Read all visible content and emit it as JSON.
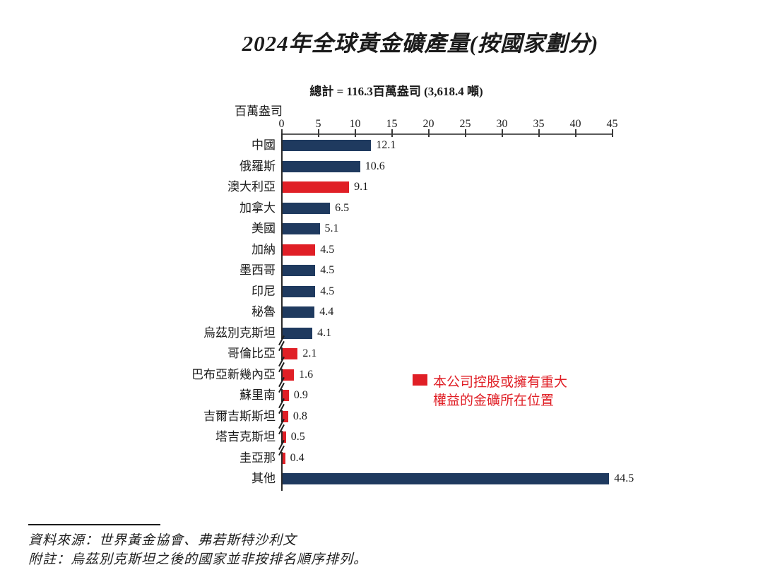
{
  "title": "2024年全球黃金礦產量(按國家劃分)",
  "chart_data": {
    "type": "bar",
    "orientation": "horizontal",
    "subtitle": "總計 =  116.3百萬盎司 (3,618.4 噸)",
    "unit_label": "百萬盎司",
    "xlabel": "百萬盎司",
    "ylabel": "",
    "xlim": [
      0,
      45
    ],
    "x_ticks": [
      0,
      5,
      10,
      15,
      20,
      25,
      30,
      35,
      40,
      45
    ],
    "grid": false,
    "categories": [
      "中國",
      "俄羅斯",
      "澳大利亞",
      "加拿大",
      "美國",
      "加納",
      "墨西哥",
      "印尼",
      "秘魯",
      "烏茲別克斯坦",
      "哥倫比亞",
      "巴布亞新幾內亞",
      "蘇里南",
      "吉爾吉斯斯坦",
      "塔吉克斯坦",
      "圭亞那",
      "其他"
    ],
    "values": [
      12.1,
      10.6,
      9.1,
      6.5,
      5.1,
      4.5,
      4.5,
      4.5,
      4.4,
      4.1,
      2.1,
      1.6,
      0.9,
      0.8,
      0.5,
      0.4,
      44.5
    ],
    "highlighted": [
      false,
      false,
      true,
      false,
      false,
      true,
      false,
      false,
      false,
      false,
      true,
      true,
      true,
      true,
      true,
      true,
      false
    ],
    "axis_break_after_indices": [
      9,
      10,
      11,
      12,
      13,
      14
    ],
    "colors": {
      "bar_default": "#1f3a5f",
      "bar_highlight": "#e01f26",
      "text": "#1b1b1b",
      "axis": "#5a5a5a"
    }
  },
  "legend": {
    "line1": "本公司控股或擁有重大",
    "line2": "權益的金礦所在位置",
    "color": "#e01f26"
  },
  "footer": {
    "source": "資料來源：世界黃金協會、弗若斯特沙利文",
    "note": "附註：烏茲別克斯坦之後的國家並非按排名順序排列。"
  }
}
